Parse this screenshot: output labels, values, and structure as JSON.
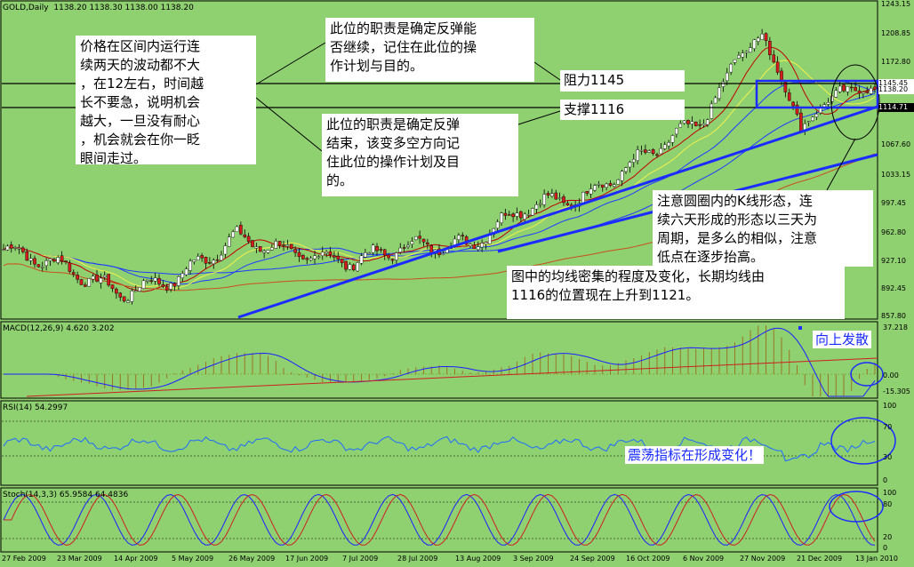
{
  "header": {
    "symbol": "GOLD,Daily",
    "ohlc": "1138.20 1138.30 1138.00 1138.20"
  },
  "annotations": {
    "note1": "价格在区间内运行连\n续两天的波动都不大\n，在12左右，时间越\n长不要急，说明机会\n越大，一旦没有耐心\n，机会就会在你一眨\n眼间走过。",
    "note2": "此位的职责是确定反弹能\n否继续，记住在此位的操\n作计划与目的。",
    "note3": "此位的职责是确定反弹\n结束，该变多空方向记\n住此位的操作计划及目\n的。",
    "resistance": "阻力1145",
    "support": "支撑1116",
    "note4": "注意圆圈内的K线形态，连\n续六天形成的形态以三天为\n周期，是多么的相似，注意\n低点在逐步抬高。",
    "note5": "图中的均线密集的程度及变化，长期均线由\n1116的位置现在上升到1121。",
    "macd_note": "向上发散",
    "rsi_note": "震荡指标在形成变化！"
  },
  "panels": {
    "macd_label": "MACD(12,26,9) 4.620 3.202",
    "rsi_label": "RSI(14) 54.2997",
    "stoch_label": "Stoch(14,3,3) 65.9584 64.4836"
  },
  "price_axis": [
    "1243.15",
    "1208.85",
    "1172.80",
    "1145.45",
    "1138.20",
    "1114.71",
    "1067.60",
    "1033.15",
    "997.45",
    "962.80",
    "927.10",
    "892.45",
    "857.80"
  ],
  "macd_axis": [
    "37.218",
    "0.00",
    "-15.305"
  ],
  "rsi_axis": [
    "100",
    "70",
    "30",
    "0"
  ],
  "stoch_axis": [
    "100",
    "80",
    "20",
    "0"
  ],
  "date_axis": [
    "27 Feb 2009",
    "23 Mar 2009",
    "14 Apr 2009",
    "5 May 2009",
    "26 May 2009",
    "17 Jun 2009",
    "7 Jul 2009",
    "28 Jul 2009",
    "13 Aug 2009",
    "3 Sep 2009",
    "24 Sep 2009",
    "16 Oct 2009",
    "6 Nov 2009",
    "27 Nov 2009",
    "21 Dec 2009",
    "13 Jan 2010"
  ],
  "colors": {
    "background": "#8fd071",
    "bull_candle": "#ffffff",
    "bear_candle": "#d51c1c",
    "trendline": "#1a2cff",
    "ma_fast": "#c00000",
    "ma_yellow": "#f2f24a",
    "ma_blue": "#1e3cff"
  },
  "chart_data": [
    {
      "type": "candlestick",
      "series": [
        {
          "anchors_x_dates": [
            "27 Feb 2009",
            "23 Mar 2009",
            "14 Apr 2009",
            "5 May 2009",
            "26 May 2009",
            "17 Jun 2009",
            "7 Jul 2009",
            "28 Jul 2009",
            "13 Aug 2009",
            "3 Sep 2009",
            "24 Sep 2009",
            "16 Oct 2009",
            "6 Nov 2009",
            "27 Nov 2009",
            "21 Dec 2009",
            "13 Jan 2010"
          ],
          "close_approx": [
            940,
            920,
            885,
            905,
            955,
            935,
            925,
            945,
            945,
            995,
            1005,
            1055,
            1100,
            1205,
            1085,
            1138
          ]
        }
      ],
      "ylim": [
        857.8,
        1243.15
      ],
      "horizontal_levels": [
        1145,
        1116
      ]
    },
    {
      "type": "bar",
      "name": "MACD",
      "ylim": [
        -15.305,
        37.218
      ]
    },
    {
      "type": "line",
      "name": "RSI(14)",
      "ylim": [
        0,
        100
      ]
    },
    {
      "type": "line",
      "name": "Stoch(14,3,3)",
      "ylim": [
        0,
        100
      ]
    }
  ]
}
